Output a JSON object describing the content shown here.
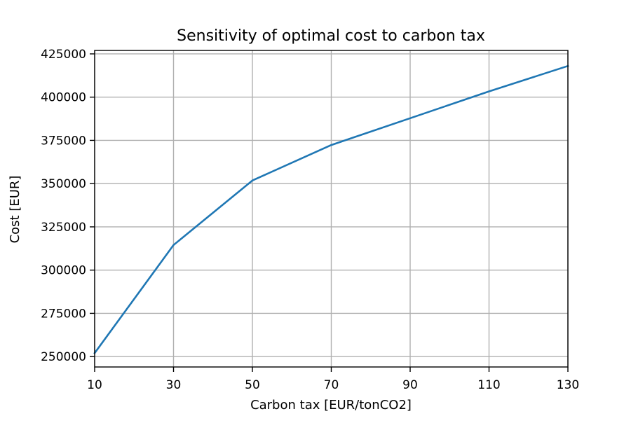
{
  "chart_data": {
    "type": "line",
    "title": "Sensitivity of optimal cost to carbon tax",
    "xlabel": "Carbon tax [EUR/tonCO2]",
    "ylabel": "Cost [EUR]",
    "x": [
      10,
      30,
      50,
      70,
      90,
      110,
      130
    ],
    "series": [
      {
        "values": [
          252000,
          314500,
          351800,
          372300,
          387800,
          403300,
          418000
        ],
        "color": "#1f77b4"
      }
    ],
    "xticks": [
      "10",
      "30",
      "50",
      "70",
      "90",
      "110",
      "130"
    ],
    "yticks": [
      "250000",
      "275000",
      "300000",
      "325000",
      "350000",
      "375000",
      "400000",
      "425000"
    ],
    "xlim": [
      10,
      130
    ],
    "ylim": [
      244000,
      427000
    ],
    "grid": true
  }
}
